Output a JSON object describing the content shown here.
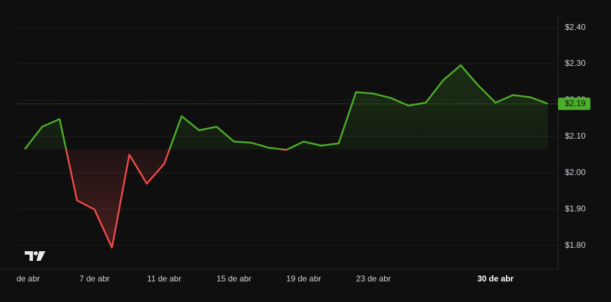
{
  "chart_data": {
    "type": "baseline",
    "categories": [
      "de abr",
      null,
      null,
      null,
      "7 de abr",
      null,
      null,
      null,
      "11 de abr",
      null,
      null,
      null,
      "15 de abr",
      null,
      null,
      null,
      "19 de abr",
      null,
      null,
      null,
      "23 de abr",
      null,
      null,
      null,
      null,
      null,
      null,
      "30 de abr",
      null,
      null,
      null
    ],
    "bold_category": "30 de abr",
    "values": [
      2.065,
      2.127,
      2.148,
      1.924,
      1.899,
      1.794,
      2.05,
      1.97,
      2.025,
      2.156,
      2.117,
      2.127,
      2.086,
      2.083,
      2.069,
      2.063,
      2.086,
      2.075,
      2.081,
      2.222,
      2.218,
      2.206,
      2.185,
      2.193,
      2.255,
      2.296,
      2.241,
      2.193,
      2.214,
      2.208,
      2.19
    ],
    "last_value_label": "$2.19",
    "baseline": 2.065,
    "up_color": "#4caf2a",
    "down_color": "#f04a4a",
    "ylim": [
      1.735,
      2.438
    ],
    "yticks": [
      {
        "value": 1.8,
        "label": "$1.80"
      },
      {
        "value": 1.9,
        "label": "$1.90"
      },
      {
        "value": 2.0,
        "label": "$2.00"
      },
      {
        "value": 2.1,
        "label": "$2.10"
      },
      {
        "value": 2.2,
        "label": "$2.20"
      },
      {
        "value": 2.3,
        "label": "$2.30"
      },
      {
        "value": 2.4,
        "label": "$2.40"
      }
    ],
    "grid": true
  }
}
